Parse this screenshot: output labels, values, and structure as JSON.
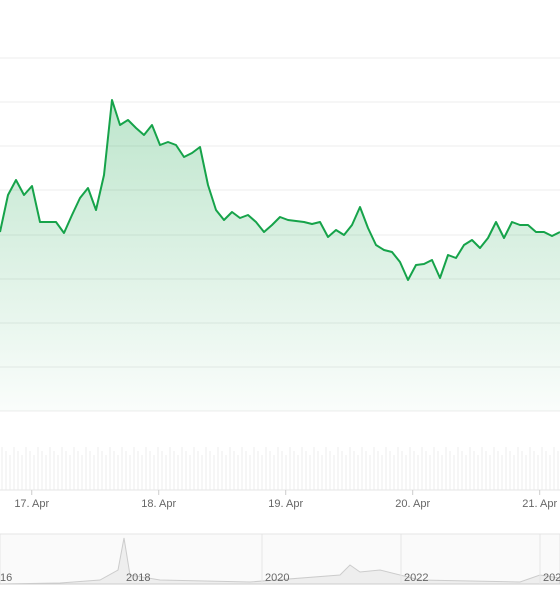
{
  "chart_data": {
    "type": "area",
    "color": "#16a34a",
    "x": [
      16.75,
      16.813,
      16.876,
      16.939,
      17.002,
      17.065,
      17.128,
      17.191,
      17.254,
      17.317,
      17.38,
      17.443,
      17.506,
      17.569,
      17.632,
      17.695,
      17.758,
      17.821,
      17.884,
      17.947,
      18.01,
      18.073,
      18.136,
      18.199,
      18.262,
      18.325,
      18.388,
      18.451,
      18.514,
      18.577,
      18.64,
      18.703,
      18.766,
      18.829,
      18.892,
      18.955,
      19.018,
      19.081,
      19.144,
      19.207,
      19.27,
      19.333,
      19.396,
      19.459,
      19.522,
      19.585,
      19.648,
      19.711,
      19.774,
      19.837,
      19.9,
      19.963,
      20.026,
      20.089,
      20.152,
      20.215,
      20.278,
      20.341,
      20.404,
      20.467,
      20.53,
      20.593,
      20.656,
      20.719,
      20.782,
      20.845,
      20.908,
      20.971,
      21.034,
      21.097,
      21.16
    ],
    "values": [
      179,
      216,
      231,
      216,
      225,
      189,
      189,
      189,
      178,
      196,
      213,
      223,
      201,
      236,
      311,
      286,
      291,
      283,
      276,
      286,
      266,
      269,
      266,
      254,
      258,
      264,
      226,
      201,
      191,
      199,
      193,
      196,
      189,
      179,
      186,
      194,
      191,
      190,
      189,
      187,
      189,
      174,
      181,
      176,
      186,
      204,
      183,
      166,
      161,
      159,
      149,
      131,
      146,
      147,
      151,
      133,
      156,
      153,
      166,
      171,
      163,
      173,
      189,
      173,
      189,
      186,
      186,
      179,
      179,
      175,
      179
    ],
    "xlim": [
      16.75,
      21.16
    ],
    "xticks": [
      {
        "value": 17,
        "label": "17. Apr"
      },
      {
        "value": 18,
        "label": "18. Apr"
      },
      {
        "value": 19,
        "label": "19. Apr"
      },
      {
        "value": 20,
        "label": "20. Apr"
      },
      {
        "value": 21,
        "label": "21. Apr"
      }
    ],
    "ylim": [
      0,
      353
    ],
    "navigator_labels": [
      "16",
      "2018",
      "2020",
      "2022",
      "202"
    ]
  }
}
